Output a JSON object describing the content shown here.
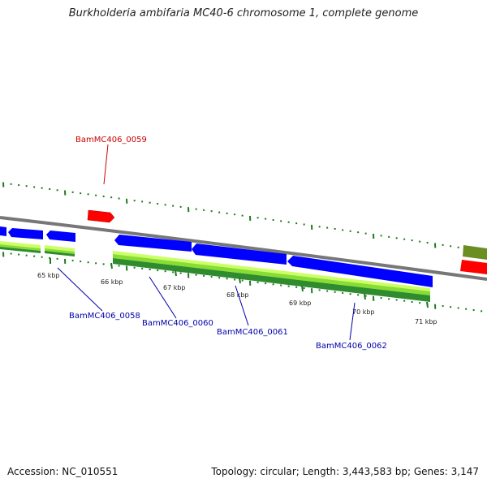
{
  "title": "Burkholderia ambifaria MC40-6 chromosome 1, complete genome",
  "footer": {
    "accession": "Accession: NC_010551",
    "summary": "Topology: circular; Length: 3,443,583 bp; Genes: 3,147"
  },
  "colors": {
    "backbone": "#808080",
    "forward_gene": "#ff0000",
    "reverse_gene": "#0000ff",
    "feature_light": "#ccff66",
    "feature_mid": "#88dd33",
    "feature_dark": "#2e8b2e",
    "tick": "#1e7a1e",
    "label_forward": "#cc0000",
    "label_reverse": "#0000aa",
    "olive_gene": "#6b8e23"
  },
  "ticks": [
    "65 kbp",
    "66 kbp",
    "67 kbp",
    "68 kbp",
    "69 kbp",
    "70 kbp",
    "71 kbp"
  ],
  "genes": [
    {
      "id": "BamMC406_0058",
      "strand": "reverse"
    },
    {
      "id": "BamMC406_0059",
      "strand": "forward"
    },
    {
      "id": "BamMC406_0060",
      "strand": "reverse"
    },
    {
      "id": "BamMC406_0061",
      "strand": "reverse"
    },
    {
      "id": "BamMC406_0062",
      "strand": "reverse"
    }
  ]
}
